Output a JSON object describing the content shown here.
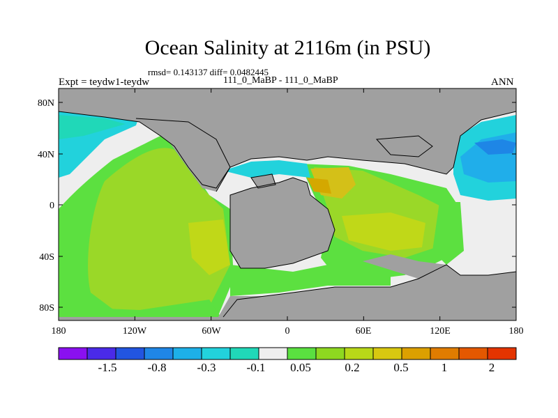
{
  "title": "Ocean Salinity at 2116m (in PSU)",
  "stats": "rmsd= 0.143137 diff= 0.0482445",
  "subtitle": "111_0_MaBP - 111_0_MaBP",
  "left_label": "Expt = teydw1-teydw",
  "right_label": "ANN",
  "map": {
    "lat_labels": [
      "80N",
      "40N",
      "0",
      "40S",
      "80S"
    ],
    "lon_labels": [
      "180",
      "120W",
      "60W",
      "0",
      "60E",
      "120E",
      "180"
    ]
  },
  "colorbar": {
    "labels": [
      "-1.5",
      "-0.8",
      "-0.3",
      "-0.1",
      "0.05",
      "0.2",
      "0.5",
      "1",
      "2"
    ],
    "colors": [
      "#8a10f0",
      "#4a2ae8",
      "#2255e0",
      "#1f86e6",
      "#1db0e8",
      "#22d2dc",
      "#20d8b8",
      "#eeeeee",
      "#5ae040",
      "#8ed820",
      "#b8d818",
      "#d8c810",
      "#dca000",
      "#e07c00",
      "#e45800",
      "#e43400"
    ]
  },
  "colors": {
    "land": "#a0a0a0",
    "neutral": "#eeeeee",
    "green": "#5ce040",
    "yellowgreen": "#9ad828",
    "lime": "#c0d818",
    "olive": "#d4b800",
    "cyan": "#22d2dc",
    "blue": "#20aeea",
    "deepblue": "#1e86e6",
    "teal": "#20d8b8"
  }
}
